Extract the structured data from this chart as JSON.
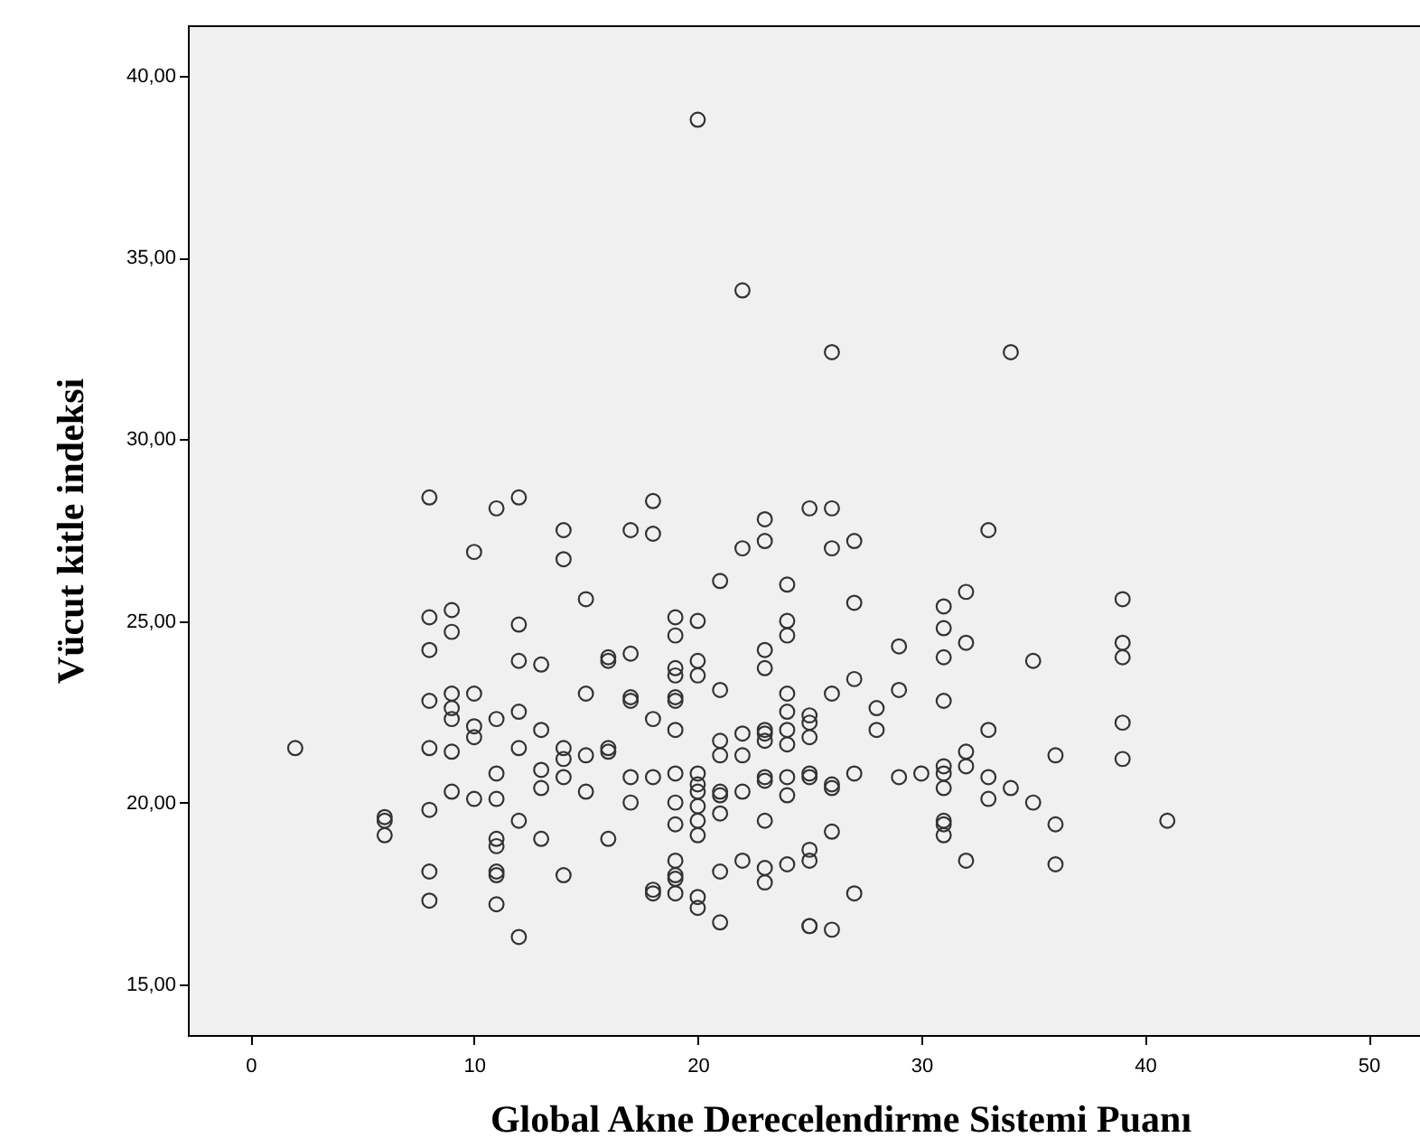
{
  "chart_data": {
    "type": "scatter",
    "xlabel": "Global  Akne Derecelendirme Sistemi Puanı",
    "ylabel": "Vücut kitle indeksi",
    "xlim": [
      -2.8,
      52.3
    ],
    "ylim": [
      13.6,
      41.4
    ],
    "xticks": [
      0,
      10,
      20,
      30,
      40,
      50
    ],
    "yticks": [
      {
        "value": 15,
        "label": "15,00"
      },
      {
        "value": 20,
        "label": "20,00"
      },
      {
        "value": 25,
        "label": "25,00"
      },
      {
        "value": 30,
        "label": "30,00"
      },
      {
        "value": 35,
        "label": "35,00"
      },
      {
        "value": 40,
        "label": "40,00"
      }
    ],
    "grid": false,
    "marker": "circle",
    "series": [
      {
        "color": "#333333",
        "x": [
          2,
          6,
          6,
          6,
          8,
          8,
          8,
          8,
          8,
          8,
          8,
          8,
          9,
          9,
          9,
          9,
          9,
          9,
          9,
          10,
          10,
          10,
          10,
          10,
          11,
          11,
          11,
          11,
          11,
          11,
          11,
          11,
          11,
          12,
          12,
          12,
          12,
          12,
          12,
          12,
          13,
          13,
          13,
          13,
          13,
          14,
          14,
          14,
          14,
          14,
          14,
          15,
          15,
          15,
          15,
          16,
          16,
          16,
          16,
          16,
          17,
          17,
          17,
          17,
          17,
          17,
          18,
          18,
          18,
          18,
          18,
          18,
          19,
          19,
          19,
          19,
          19,
          19,
          19,
          19,
          19,
          19,
          19,
          19,
          19,
          19,
          20,
          20,
          20,
          20,
          20,
          20,
          20,
          20,
          20,
          20,
          20,
          20,
          21,
          21,
          21,
          21,
          21,
          21,
          21,
          21,
          21,
          22,
          22,
          22,
          22,
          22,
          22,
          23,
          23,
          23,
          23,
          23,
          23,
          23,
          23,
          23,
          23,
          23,
          23,
          24,
          24,
          24,
          24,
          24,
          24,
          24,
          24,
          24,
          24,
          25,
          25,
          25,
          25,
          25,
          25,
          25,
          25,
          25,
          25,
          26,
          26,
          26,
          26,
          26,
          26,
          26,
          26,
          27,
          27,
          27,
          27,
          27,
          28,
          28,
          29,
          29,
          29,
          30,
          31,
          31,
          31,
          31,
          31,
          31,
          31,
          31,
          31,
          31,
          32,
          32,
          32,
          32,
          32,
          33,
          33,
          33,
          33,
          34,
          34,
          35,
          35,
          36,
          36,
          36,
          39,
          39,
          39,
          39,
          39,
          41
        ],
        "values": [
          21.5,
          19.6,
          19.5,
          19.1,
          28.4,
          25.1,
          24.2,
          22.8,
          21.5,
          19.8,
          18.1,
          17.3,
          25.3,
          24.7,
          23.0,
          22.6,
          22.3,
          21.4,
          20.3,
          26.9,
          23.0,
          22.1,
          21.8,
          20.1,
          28.1,
          22.3,
          20.8,
          20.1,
          19.0,
          18.8,
          18.1,
          18.0,
          17.2,
          28.4,
          24.9,
          23.9,
          22.5,
          21.5,
          19.5,
          16.3,
          23.8,
          22.0,
          20.9,
          20.4,
          19.0,
          27.5,
          26.7,
          21.5,
          21.2,
          20.7,
          18.0,
          25.6,
          23.0,
          21.3,
          20.3,
          24.0,
          23.9,
          21.5,
          21.4,
          19.0,
          27.5,
          24.1,
          22.9,
          22.8,
          20.7,
          20.0,
          28.3,
          27.4,
          22.3,
          20.7,
          17.6,
          17.5,
          25.1,
          24.6,
          23.7,
          23.5,
          22.9,
          22.8,
          22.0,
          20.8,
          20.0,
          19.4,
          18.4,
          18.0,
          17.9,
          17.5,
          38.8,
          25.0,
          23.9,
          23.5,
          20.8,
          20.5,
          20.3,
          19.9,
          19.5,
          19.1,
          17.4,
          17.1,
          26.1,
          23.1,
          21.7,
          21.3,
          20.3,
          20.2,
          19.7,
          18.1,
          16.7,
          34.1,
          27.0,
          21.9,
          21.3,
          20.3,
          18.4,
          27.8,
          27.2,
          24.2,
          23.7,
          22.0,
          21.9,
          21.7,
          20.7,
          20.6,
          19.5,
          18.2,
          17.8,
          26.0,
          25.0,
          24.6,
          23.0,
          22.5,
          22.0,
          21.6,
          20.7,
          20.2,
          18.3,
          28.1,
          22.4,
          22.2,
          21.8,
          20.8,
          20.7,
          18.7,
          18.4,
          16.6,
          16.6,
          32.4,
          28.1,
          27.0,
          23.0,
          20.5,
          20.4,
          19.2,
          16.5,
          27.2,
          25.5,
          23.4,
          20.8,
          17.5,
          22.6,
          22.0,
          24.3,
          23.1,
          20.7,
          20.8,
          25.4,
          24.8,
          24.0,
          22.8,
          21.0,
          20.8,
          20.4,
          19.5,
          19.4,
          19.1,
          25.8,
          24.4,
          21.4,
          21.0,
          18.4,
          27.5,
          22.0,
          20.7,
          20.1,
          32.4,
          20.4,
          23.9,
          20.0,
          21.3,
          19.4,
          18.3,
          25.6,
          24.4,
          24.0,
          22.2,
          21.2,
          19.5
        ]
      }
    ]
  }
}
